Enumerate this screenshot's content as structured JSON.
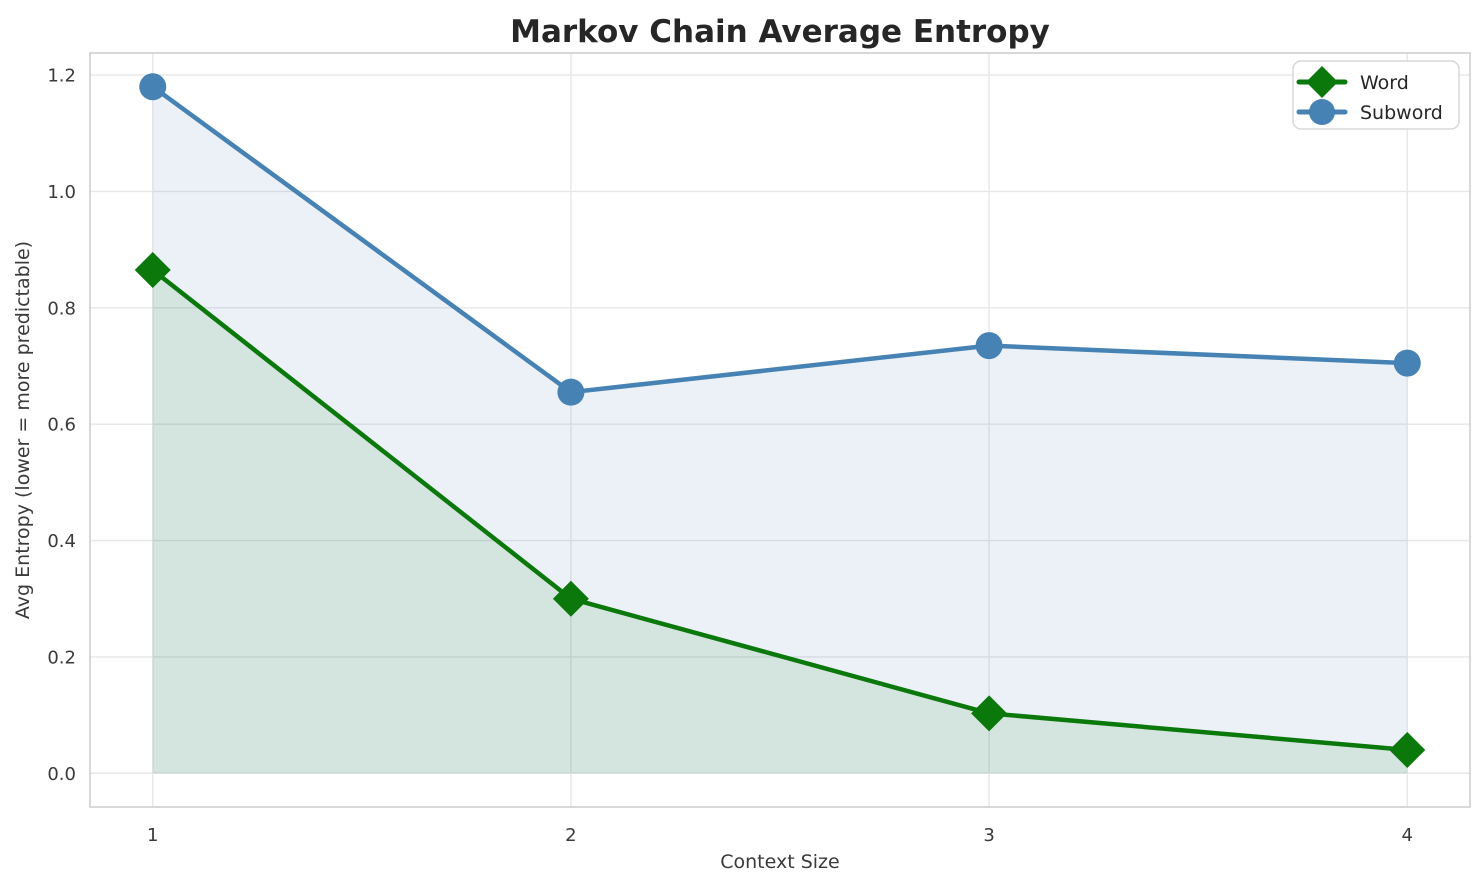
{
  "chart_data": {
    "type": "line",
    "title": "Markov Chain Average Entropy",
    "xlabel": "Context Size",
    "ylabel": "Avg Entropy (lower = more predictable)",
    "x": [
      1,
      2,
      3,
      4
    ],
    "xticks": [
      1,
      2,
      3,
      4
    ],
    "yticks": [
      0.0,
      0.2,
      0.4,
      0.6,
      0.8,
      1.0,
      1.2
    ],
    "xlim": [
      0.85,
      4.15
    ],
    "ylim": [
      -0.058,
      1.238
    ],
    "grid": true,
    "legend_position": "upper right",
    "fill_baseline": 0,
    "series": [
      {
        "name": "Word",
        "values": [
          0.865,
          0.3,
          0.103,
          0.04
        ],
        "color": "#0a780a",
        "marker": "diamond",
        "fill_opacity": 0.1
      },
      {
        "name": "Subword",
        "values": [
          1.18,
          0.655,
          0.735,
          0.705
        ],
        "color": "#4682b4",
        "marker": "circle",
        "fill_opacity": 0.11
      }
    ],
    "background_color": "#ffffff",
    "grid_color": "#e7e7e7",
    "spine_color": "#cccccc",
    "text_color": "#3a3a3a",
    "title_color": "#262626"
  }
}
